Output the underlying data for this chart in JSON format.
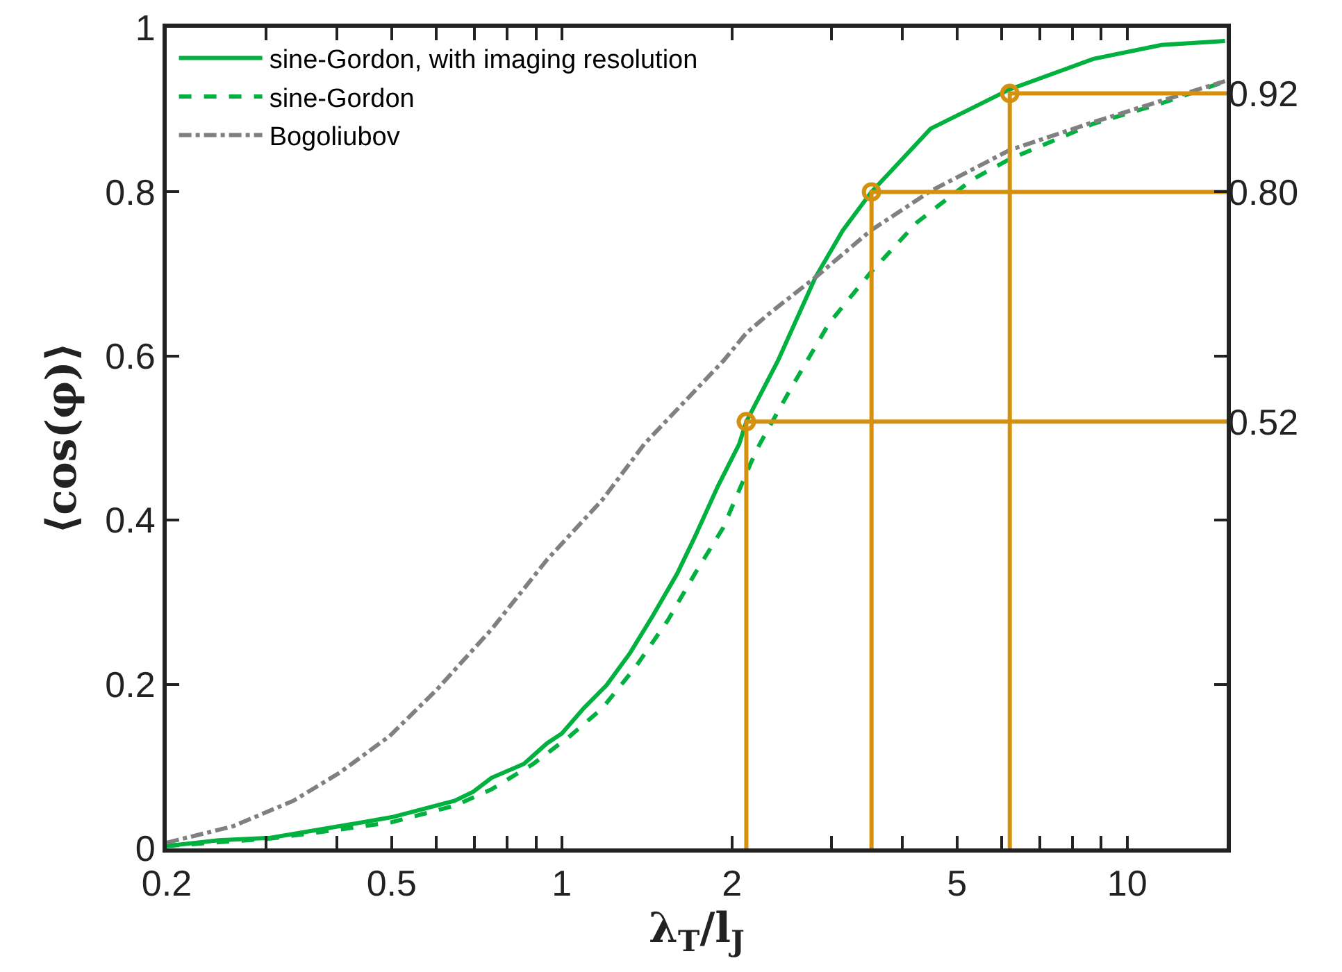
{
  "chart_data": {
    "type": "line",
    "xlabel": "λ$_{T}$/l$_{J}$",
    "ylabel": "⟨cos(φ)⟩",
    "log": "x",
    "xlim": [
      0.2,
      15
    ],
    "xticks": [
      0.2,
      {
        "value": 0.3,
        "label": null
      },
      {
        "value": 0.4,
        "label": null
      },
      0.5,
      {
        "value": 0.6,
        "label": null
      },
      {
        "value": 0.7,
        "label": null
      },
      {
        "value": 0.8,
        "label": null
      },
      {
        "value": 0.9,
        "label": null
      },
      1,
      2,
      {
        "value": 3,
        "label": null
      },
      {
        "value": 4,
        "label": null
      },
      5,
      {
        "value": 6,
        "label": null
      },
      {
        "value": 7,
        "label": null
      },
      {
        "value": 8,
        "label": null
      },
      {
        "value": 9,
        "label": null
      },
      10
    ],
    "ylim": [
      0,
      1
    ],
    "yticks": [
      0,
      0.2,
      0.4,
      0.6,
      0.8,
      1
    ],
    "y2lim": [
      0,
      1
    ],
    "y2ticks": [
      0.52,
      {
        "value": 0.8,
        "label": "0.80"
      },
      0.92
    ],
    "grid": false,
    "legend": "top left",
    "series": [
      {
        "name": "sine-Gordon, with imaging resolution",
        "color": "#00b140",
        "line_style": "solid",
        "x": [
          0.2,
          0.247,
          0.305,
          0.404,
          0.5,
          0.646,
          0.697,
          0.751,
          0.857,
          0.941,
          1,
          1.094,
          1.2,
          1.32,
          1.45,
          1.6,
          1.72,
          1.89,
          2.06,
          2.12,
          2.41,
          2.81,
          3.14,
          3.52,
          4.49,
          6.2,
          8.71,
          11.5,
          14.9
        ],
        "values": [
          0.003,
          0.01,
          0.013,
          0.027,
          0.038,
          0.058,
          0.069,
          0.086,
          0.103,
          0.128,
          0.14,
          0.171,
          0.199,
          0.238,
          0.284,
          0.335,
          0.38,
          0.442,
          0.493,
          0.52,
          0.594,
          0.696,
          0.753,
          0.799,
          0.877,
          0.925,
          0.962,
          0.979,
          0.984
        ]
      },
      {
        "name": "sine-Gordon",
        "color": "#00b140",
        "line_style": "dashed",
        "x": [
          0.2,
          0.305,
          0.404,
          0.5,
          0.646,
          0.751,
          0.89,
          1.034,
          1.18,
          1.35,
          1.54,
          1.72,
          1.93,
          2.16,
          2.24,
          2.54,
          2.97,
          3.52,
          4.25,
          5.32,
          6.2,
          8.71,
          11.5,
          14.7
        ],
        "values": [
          0.003,
          0.012,
          0.023,
          0.032,
          0.052,
          0.072,
          0.103,
          0.137,
          0.171,
          0.221,
          0.278,
          0.335,
          0.391,
          0.47,
          0.493,
          0.56,
          0.64,
          0.702,
          0.763,
          0.815,
          0.84,
          0.883,
          0.908,
          0.933
        ]
      },
      {
        "name": "Bogoliubov",
        "color": "#808080",
        "line_style": "dashdot",
        "x": [
          0.2,
          0.262,
          0.335,
          0.404,
          0.496,
          0.6,
          0.751,
          0.942,
          1.18,
          1.4,
          1.93,
          2.12,
          2.32,
          2.81,
          3.52,
          4.49,
          6.2,
          8.71,
          11.5,
          14.9
        ],
        "values": [
          0.007,
          0.027,
          0.058,
          0.092,
          0.137,
          0.193,
          0.267,
          0.352,
          0.425,
          0.493,
          0.594,
          0.628,
          0.651,
          0.696,
          0.753,
          0.801,
          0.851,
          0.885,
          0.911,
          0.935
        ]
      },
      {
        "color": "#d4900f",
        "line_style": "solid",
        "x": [
          2.12,
          2.12,
          15
        ],
        "values": [
          0,
          0.52,
          0.52
        ]
      },
      {
        "color": "#d4900f",
        "line_style": "solid",
        "x": [
          3.53,
          3.53,
          15
        ],
        "values": [
          0,
          0.8,
          0.8
        ]
      },
      {
        "color": "#d4900f",
        "line_style": "solid",
        "x": [
          6.2,
          6.2,
          15
        ],
        "values": [
          0,
          0.92,
          0.92
        ]
      },
      {
        "type": "scatter",
        "color": "#d4900f",
        "marker": "circle",
        "x": [
          2.12,
          3.53,
          6.2
        ],
        "values": [
          0.52,
          0.8,
          0.92
        ]
      }
    ]
  }
}
